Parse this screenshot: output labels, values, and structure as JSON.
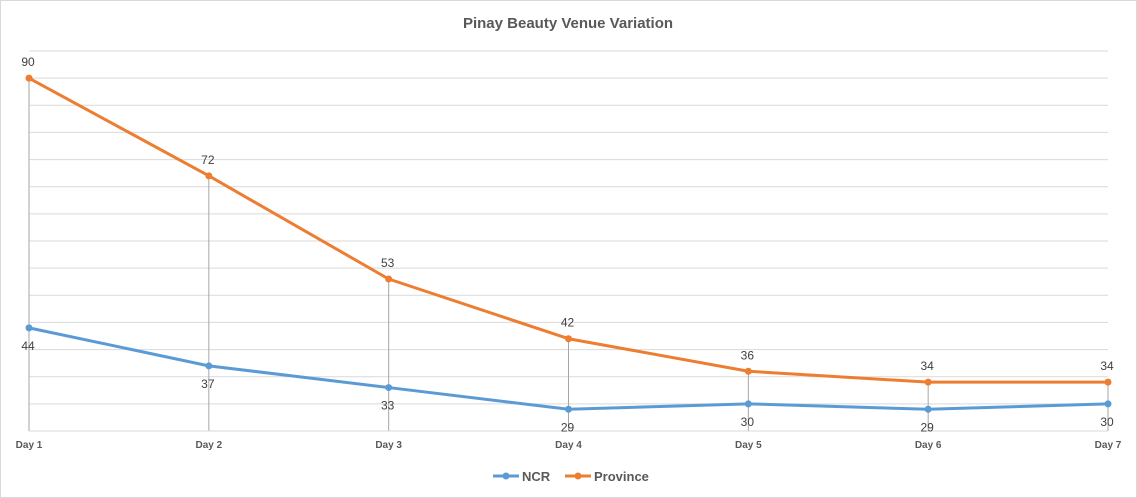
{
  "chart_data": {
    "type": "line",
    "title": "Pinay Beauty Venue Variation",
    "categories": [
      "Day 1",
      "Day 2",
      "Day 3",
      "Day 4",
      "Day 5",
      "Day 6",
      "Day 7"
    ],
    "series": [
      {
        "name": "NCR",
        "values": [
          44,
          37,
          33,
          29,
          30,
          29,
          30
        ],
        "color": "#5b9bd5",
        "label_position": "below"
      },
      {
        "name": "Province",
        "values": [
          90,
          72,
          53,
          42,
          36,
          34,
          34
        ],
        "color": "#ed7d31",
        "label_position": "above"
      }
    ],
    "ylim": [
      25,
      95
    ],
    "y_gridline_step": 5,
    "y_tick_labels_visible": false,
    "grid": true,
    "drop_lines": true,
    "legend": "bottom",
    "xlabel": "",
    "ylabel": ""
  }
}
